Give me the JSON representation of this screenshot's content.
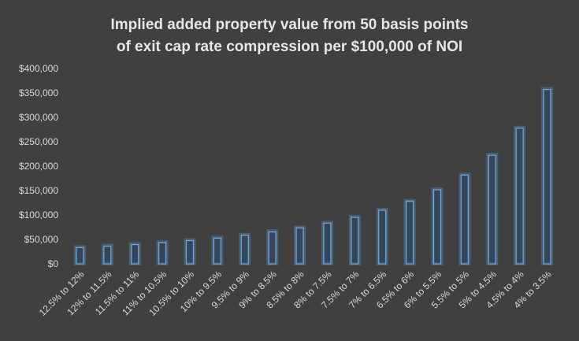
{
  "chart_data": {
    "type": "bar",
    "title_lines": [
      "Implied added property value from 50 basis points",
      "of exit cap rate compression per $100,000 of NOI"
    ],
    "categories": [
      "12.5% to 12%",
      "12% to 11.5%",
      "11.5% to 11%",
      "11% to 10.5%",
      "10.5% to 10%",
      "10% to 9.5%",
      "9.5% to 9%",
      "9% to 8.5%",
      "8.5% to 8%",
      "8% to 7.5%",
      "7.5% to 7%",
      "7% to 6.5%",
      "6.5% to 6%",
      "6% to 5.5%",
      "5.5% to 5%",
      "5% to 4.5%",
      "4.5% to 4%",
      "4% to 3.5%"
    ],
    "values": [
      33333,
      36232,
      39526,
      43290,
      47619,
      52632,
      58480,
      65359,
      73529,
      83333,
      95238,
      109890,
      128205,
      151515,
      181818,
      222222,
      277778,
      357143
    ],
    "ylim": [
      0,
      400000
    ],
    "y_ticks": [
      0,
      50000,
      100000,
      150000,
      200000,
      250000,
      300000,
      350000,
      400000
    ],
    "y_tick_labels": [
      "$0",
      "$50,000",
      "$100,000",
      "$150,000",
      "$200,000",
      "$250,000",
      "$300,000",
      "$350,000",
      "$400,000"
    ],
    "grid": false,
    "legend": "none",
    "colors": {
      "background": "#404040",
      "bar_fill": "#2b4a6e",
      "bar_edge": "#6fa8dc",
      "text": "#d9d9d9"
    }
  }
}
